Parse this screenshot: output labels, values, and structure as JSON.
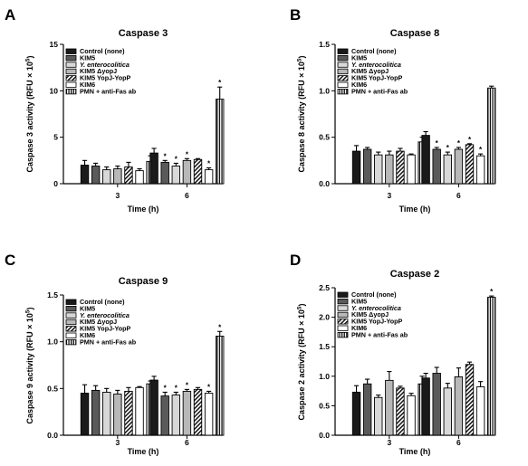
{
  "legend": [
    {
      "label": "Control (none)",
      "style": "solid-black"
    },
    {
      "label": "KIM5",
      "style": "solid-dark"
    },
    {
      "label": "Y. enterocolitica",
      "style": "light",
      "italic": true
    },
    {
      "label": "KIM5 ΔyopJ",
      "style": "lighter"
    },
    {
      "label": "KIM5 YopJ-YopP",
      "style": "diag-hatch"
    },
    {
      "label": "KIM6",
      "style": "white"
    },
    {
      "label": "PMN + anti-Fas ab",
      "style": "vert-hatch"
    }
  ],
  "colors": {
    "bar_black": "#1a1a1a",
    "bar_dark": "#5a5a5a",
    "bar_light": "#d8d8d8",
    "bar_lighter": "#b8b8b8",
    "bar_white": "#ffffff"
  },
  "chart_data": [
    {
      "letter": "A",
      "type": "bar",
      "title": "Caspase 3",
      "ylabel": "Caspase 3 activity (RFU × 10⁵)",
      "ylabel_base": "Caspase 3 activity (RFU × 10",
      "ylabel_exp": "5",
      "xlabel": "Time (h)",
      "categories": [
        "3",
        "6"
      ],
      "ylim": [
        0,
        15
      ],
      "yticks": [
        "0",
        "5",
        "10",
        "15"
      ],
      "series": [
        {
          "name": "Control (none)",
          "values": [
            2.0,
            3.3
          ],
          "errors": [
            0.5,
            0.5
          ]
        },
        {
          "name": "KIM5",
          "values": [
            1.9,
            2.3
          ],
          "errors": [
            0.3,
            0.2
          ]
        },
        {
          "name": "Y. enterocolitica",
          "values": [
            1.5,
            1.9
          ],
          "errors": [
            0.3,
            0.3
          ]
        },
        {
          "name": "KIM5 ΔyopJ",
          "values": [
            1.6,
            2.5
          ],
          "errors": [
            0.3,
            0.2
          ]
        },
        {
          "name": "KIM5 YopJ-YopP",
          "values": [
            1.8,
            2.6
          ],
          "errors": [
            0.5,
            0.1
          ]
        },
        {
          "name": "KIM6",
          "values": [
            1.4,
            1.5
          ],
          "errors": [
            0.2,
            0.2
          ]
        },
        {
          "name": "PMN + anti-Fas ab",
          "values": [
            2.4,
            9.1
          ],
          "errors": [
            0.6,
            1.3
          ]
        }
      ],
      "sig": [
        [
          false,
          false,
          false,
          false,
          false,
          false,
          false
        ],
        [
          false,
          true,
          true,
          true,
          false,
          true,
          true
        ]
      ]
    },
    {
      "letter": "B",
      "type": "bar",
      "title": "Caspase 8",
      "ylabel": "Caspase 8 activity (RFU × 10⁵)",
      "ylabel_base": "Caspase 8 activity (RFU × 10",
      "ylabel_exp": "5",
      "xlabel": "Time (h)",
      "categories": [
        "3",
        "6"
      ],
      "ylim": [
        0,
        1.5
      ],
      "yticks": [
        "0.0",
        "0.5",
        "1.0",
        "1.5"
      ],
      "series": [
        {
          "name": "Control (none)",
          "values": [
            0.35,
            0.52
          ],
          "errors": [
            0.06,
            0.04
          ]
        },
        {
          "name": "KIM5",
          "values": [
            0.37,
            0.37
          ],
          "errors": [
            0.02,
            0.02
          ]
        },
        {
          "name": "Y. enterocolitica",
          "values": [
            0.31,
            0.31
          ],
          "errors": [
            0.03,
            0.03
          ]
        },
        {
          "name": "KIM5 ΔyopJ",
          "values": [
            0.31,
            0.37
          ],
          "errors": [
            0.04,
            0.02
          ]
        },
        {
          "name": "KIM5 YopJ-YopP",
          "values": [
            0.35,
            0.42
          ],
          "errors": [
            0.03,
            0.01
          ]
        },
        {
          "name": "KIM6",
          "values": [
            0.31,
            0.3
          ],
          "errors": [
            0.01,
            0.02
          ]
        },
        {
          "name": "PMN + anti-Fas ab",
          "values": [
            0.45,
            1.03
          ],
          "errors": [
            0.05,
            0.02
          ]
        }
      ],
      "sig": [
        [
          false,
          false,
          false,
          false,
          false,
          false,
          false
        ],
        [
          false,
          true,
          true,
          true,
          true,
          true,
          false
        ]
      ]
    },
    {
      "letter": "C",
      "type": "bar",
      "title": "Caspase 9",
      "ylabel": "Caspase 9 activity (RFU × 10⁵)",
      "ylabel_base": "Caspase 9 activity (RFU × 10",
      "ylabel_exp": "5",
      "xlabel": "Time (h)",
      "categories": [
        "3",
        "6"
      ],
      "ylim": [
        0,
        1.5
      ],
      "yticks": [
        "0.0",
        "0.5",
        "1.0",
        "1.5"
      ],
      "series": [
        {
          "name": "Control (none)",
          "values": [
            0.45,
            0.59
          ],
          "errors": [
            0.09,
            0.04
          ]
        },
        {
          "name": "KIM5",
          "values": [
            0.48,
            0.42
          ],
          "errors": [
            0.05,
            0.04
          ]
        },
        {
          "name": "Y. enterocolitica",
          "values": [
            0.46,
            0.43
          ],
          "errors": [
            0.04,
            0.03
          ]
        },
        {
          "name": "KIM5 ΔyopJ",
          "values": [
            0.44,
            0.47
          ],
          "errors": [
            0.04,
            0.02
          ]
        },
        {
          "name": "KIM5 YopJ-YopP",
          "values": [
            0.47,
            0.49
          ],
          "errors": [
            0.04,
            0.02
          ]
        },
        {
          "name": "KIM6",
          "values": [
            0.51,
            0.45
          ],
          "errors": [
            0.01,
            0.02
          ]
        },
        {
          "name": "PMN + anti-Fas ab",
          "values": [
            0.55,
            1.06
          ],
          "errors": [
            0.03,
            0.05
          ]
        }
      ],
      "sig": [
        [
          false,
          false,
          false,
          false,
          false,
          false,
          false
        ],
        [
          false,
          true,
          true,
          true,
          false,
          true,
          true
        ]
      ]
    },
    {
      "letter": "D",
      "type": "bar",
      "title": "Caspase 2",
      "ylabel": "Caspase 2 activity (RFU × 10⁵)",
      "ylabel_base": "Caspase 2 activity (RFU × 10",
      "ylabel_exp": "5",
      "xlabel": "Time (h)",
      "categories": [
        "3",
        "6"
      ],
      "ylim": [
        0,
        2.5
      ],
      "yticks": [
        "0.0",
        "0.5",
        "1.0",
        "1.5",
        "2.0",
        "2.5"
      ],
      "series": [
        {
          "name": "Control (none)",
          "values": [
            0.73,
            0.97
          ],
          "errors": [
            0.11,
            0.08
          ]
        },
        {
          "name": "KIM5",
          "values": [
            0.87,
            1.05
          ],
          "errors": [
            0.08,
            0.1
          ]
        },
        {
          "name": "Y. enterocolitica",
          "values": [
            0.64,
            0.8
          ],
          "errors": [
            0.04,
            0.08
          ]
        },
        {
          "name": "KIM5 ΔyopJ",
          "values": [
            0.93,
            0.99
          ],
          "errors": [
            0.15,
            0.15
          ]
        },
        {
          "name": "KIM5 YopJ-YopP",
          "values": [
            0.8,
            1.2
          ],
          "errors": [
            0.03,
            0.04
          ]
        },
        {
          "name": "KIM6",
          "values": [
            0.67,
            0.82
          ],
          "errors": [
            0.04,
            0.09
          ]
        },
        {
          "name": "PMN + anti-Fas ab",
          "values": [
            0.87,
            2.34
          ],
          "errors": [
            0.13,
            0.02
          ]
        }
      ],
      "sig": [
        [
          false,
          false,
          false,
          false,
          false,
          false,
          false
        ],
        [
          false,
          false,
          false,
          false,
          false,
          false,
          true
        ]
      ]
    }
  ]
}
